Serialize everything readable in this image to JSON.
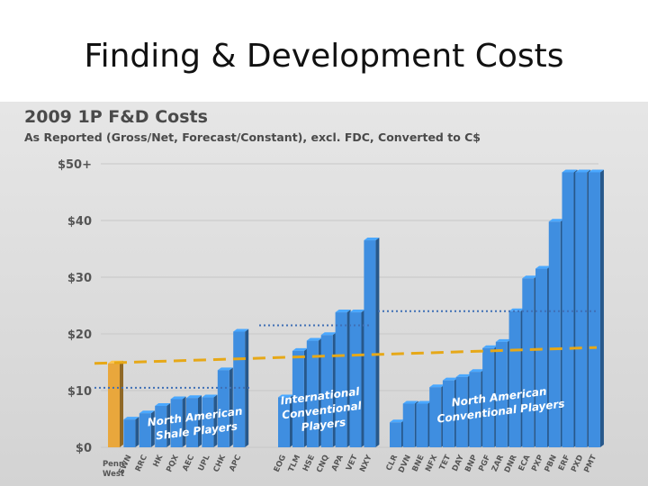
{
  "slide": {
    "title": "Finding & Development Costs"
  },
  "chart_data": {
    "type": "bar",
    "title": "2009 1P F&D Costs",
    "subtitle": "As Reported (Gross/Net, Forecast/Constant), excl. FDC, Converted to C$",
    "yticks": [
      "$0",
      "$10",
      "$20",
      "$30",
      "$40",
      "$50+"
    ],
    "ylim": [
      0,
      50
    ],
    "groups": [
      {
        "label": [
          "North American",
          "Shale Players"
        ],
        "categories": [
          "Penn West",
          "SWN",
          "RRC",
          "HK",
          "PQX",
          "AEC",
          "UPL",
          "CHK",
          "APC"
        ],
        "values": [
          14.8,
          4.9,
          6.0,
          7.3,
          8.5,
          8.7,
          8.8,
          13.6,
          20.4
        ],
        "avg": 10.5
      },
      {
        "label": [
          "International",
          "Conventional",
          "Players"
        ],
        "categories": [
          "EOG",
          "TLM",
          "HSE",
          "CNQ",
          "APA",
          "VET",
          "NXY"
        ],
        "values": [
          8.8,
          17.0,
          18.8,
          19.8,
          23.8,
          23.8,
          36.5
        ],
        "avg": 21.5
      },
      {
        "label": [
          "North American",
          "Conventional Players"
        ],
        "categories": [
          "CLR",
          "DVN",
          "BNE",
          "NFX",
          "TET",
          "DAY",
          "BNP",
          "PGF",
          "ZAR",
          "DNR",
          "ECA",
          "PXP",
          "PBN",
          "ERF",
          "PXD",
          "PMT"
        ],
        "values": [
          4.4,
          7.7,
          7.7,
          10.6,
          11.8,
          12.4,
          13.3,
          17.5,
          18.6,
          24.0,
          29.8,
          31.5,
          39.8,
          48.5,
          48.5,
          48.5
        ],
        "avg": 24.0
      }
    ],
    "peer_average": 17.2,
    "colors": {
      "highlight": "#e9a73c",
      "bars": "#3f8ee0",
      "dotted": "#3f6fb5",
      "dashed": "#e6a818"
    }
  }
}
